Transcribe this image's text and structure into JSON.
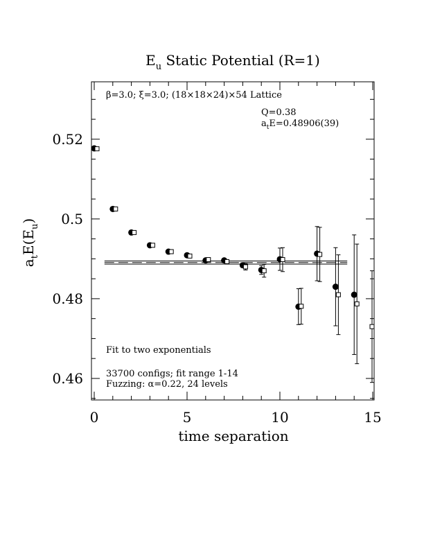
{
  "chart_data": {
    "type": "scatter",
    "title_main": "E",
    "title_sub": "u",
    "title_rest": " Static Potential (R=1)",
    "xlabel": "time separation",
    "ylabel_main": "a",
    "ylabel_sub1": "t",
    "ylabel_mid": "E(E",
    "ylabel_sub2": "u",
    "ylabel_end": ")",
    "xlim": [
      0,
      15
    ],
    "ylim": [
      0.4546,
      0.5344
    ],
    "x_ticks": [
      0,
      5,
      10,
      15
    ],
    "x_tick_labels": [
      "0",
      "5",
      "10",
      "15"
    ],
    "y_ticks": [
      0.46,
      0.48,
      0.5,
      0.52
    ],
    "y_tick_labels": [
      "0.46",
      "0.48",
      "0.5",
      "0.52"
    ],
    "annotations": {
      "lattice": "β=3.0; ξ=3.0; (18×18×24)×54 Lattice",
      "q_value": "Q=0.38",
      "energy_prefix": "a",
      "energy_sub": "t",
      "energy_value": "E=0.48906(39)",
      "fit_label": "Fit to two exponentials",
      "configs_line": "33700 configs; fit range 1-14",
      "fuzzing_line": "Fuzzing: α=0.22, 24 levels"
    },
    "fit": {
      "value": 0.48906,
      "error": 0.00039,
      "x_range": [
        1,
        14
      ]
    },
    "series": [
      {
        "marker": "filled-circle",
        "points": [
          {
            "x": 0,
            "y": 0.5177,
            "err": 0.0002
          },
          {
            "x": 1,
            "y": 0.5025,
            "err": 0.0002
          },
          {
            "x": 2,
            "y": 0.4966,
            "err": 0.0002
          },
          {
            "x": 3,
            "y": 0.4934,
            "err": 0.0002
          },
          {
            "x": 4,
            "y": 0.4918,
            "err": 0.0003
          },
          {
            "x": 5,
            "y": 0.4909,
            "err": 0.0003
          },
          {
            "x": 6,
            "y": 0.4896,
            "err": 0.0003
          },
          {
            "x": 7,
            "y": 0.4896,
            "err": 0.0004
          },
          {
            "x": 8,
            "y": 0.4884,
            "err": 0.0006
          },
          {
            "x": 9,
            "y": 0.4872,
            "err": 0.0011
          },
          {
            "x": 10,
            "y": 0.4899,
            "err": 0.0028
          },
          {
            "x": 11,
            "y": 0.478,
            "err": 0.0045
          },
          {
            "x": 12,
            "y": 0.4913,
            "err": 0.0068
          },
          {
            "x": 13,
            "y": 0.483,
            "err": 0.0098
          },
          {
            "x": 14,
            "y": 0.481,
            "err": 0.015
          }
        ]
      },
      {
        "marker": "open-square",
        "points": [
          {
            "x": 0,
            "y": 0.5176,
            "err": 0.0002
          },
          {
            "x": 1,
            "y": 0.5025,
            "err": 0.0002
          },
          {
            "x": 2,
            "y": 0.4966,
            "err": 0.0002
          },
          {
            "x": 3,
            "y": 0.4934,
            "err": 0.0002
          },
          {
            "x": 4,
            "y": 0.4918,
            "err": 0.0002
          },
          {
            "x": 5,
            "y": 0.4907,
            "err": 0.0003
          },
          {
            "x": 6,
            "y": 0.4898,
            "err": 0.0003
          },
          {
            "x": 7,
            "y": 0.4893,
            "err": 0.0003
          },
          {
            "x": 8,
            "y": 0.488,
            "err": 0.0008
          },
          {
            "x": 9,
            "y": 0.487,
            "err": 0.0016
          },
          {
            "x": 10,
            "y": 0.4898,
            "err": 0.003
          },
          {
            "x": 11,
            "y": 0.4781,
            "err": 0.0045
          },
          {
            "x": 12,
            "y": 0.4911,
            "err": 0.0068
          },
          {
            "x": 13,
            "y": 0.481,
            "err": 0.01
          },
          {
            "x": 14,
            "y": 0.4787,
            "err": 0.015
          },
          {
            "x": 15,
            "y": 0.473,
            "err": 0.014
          }
        ]
      }
    ]
  }
}
